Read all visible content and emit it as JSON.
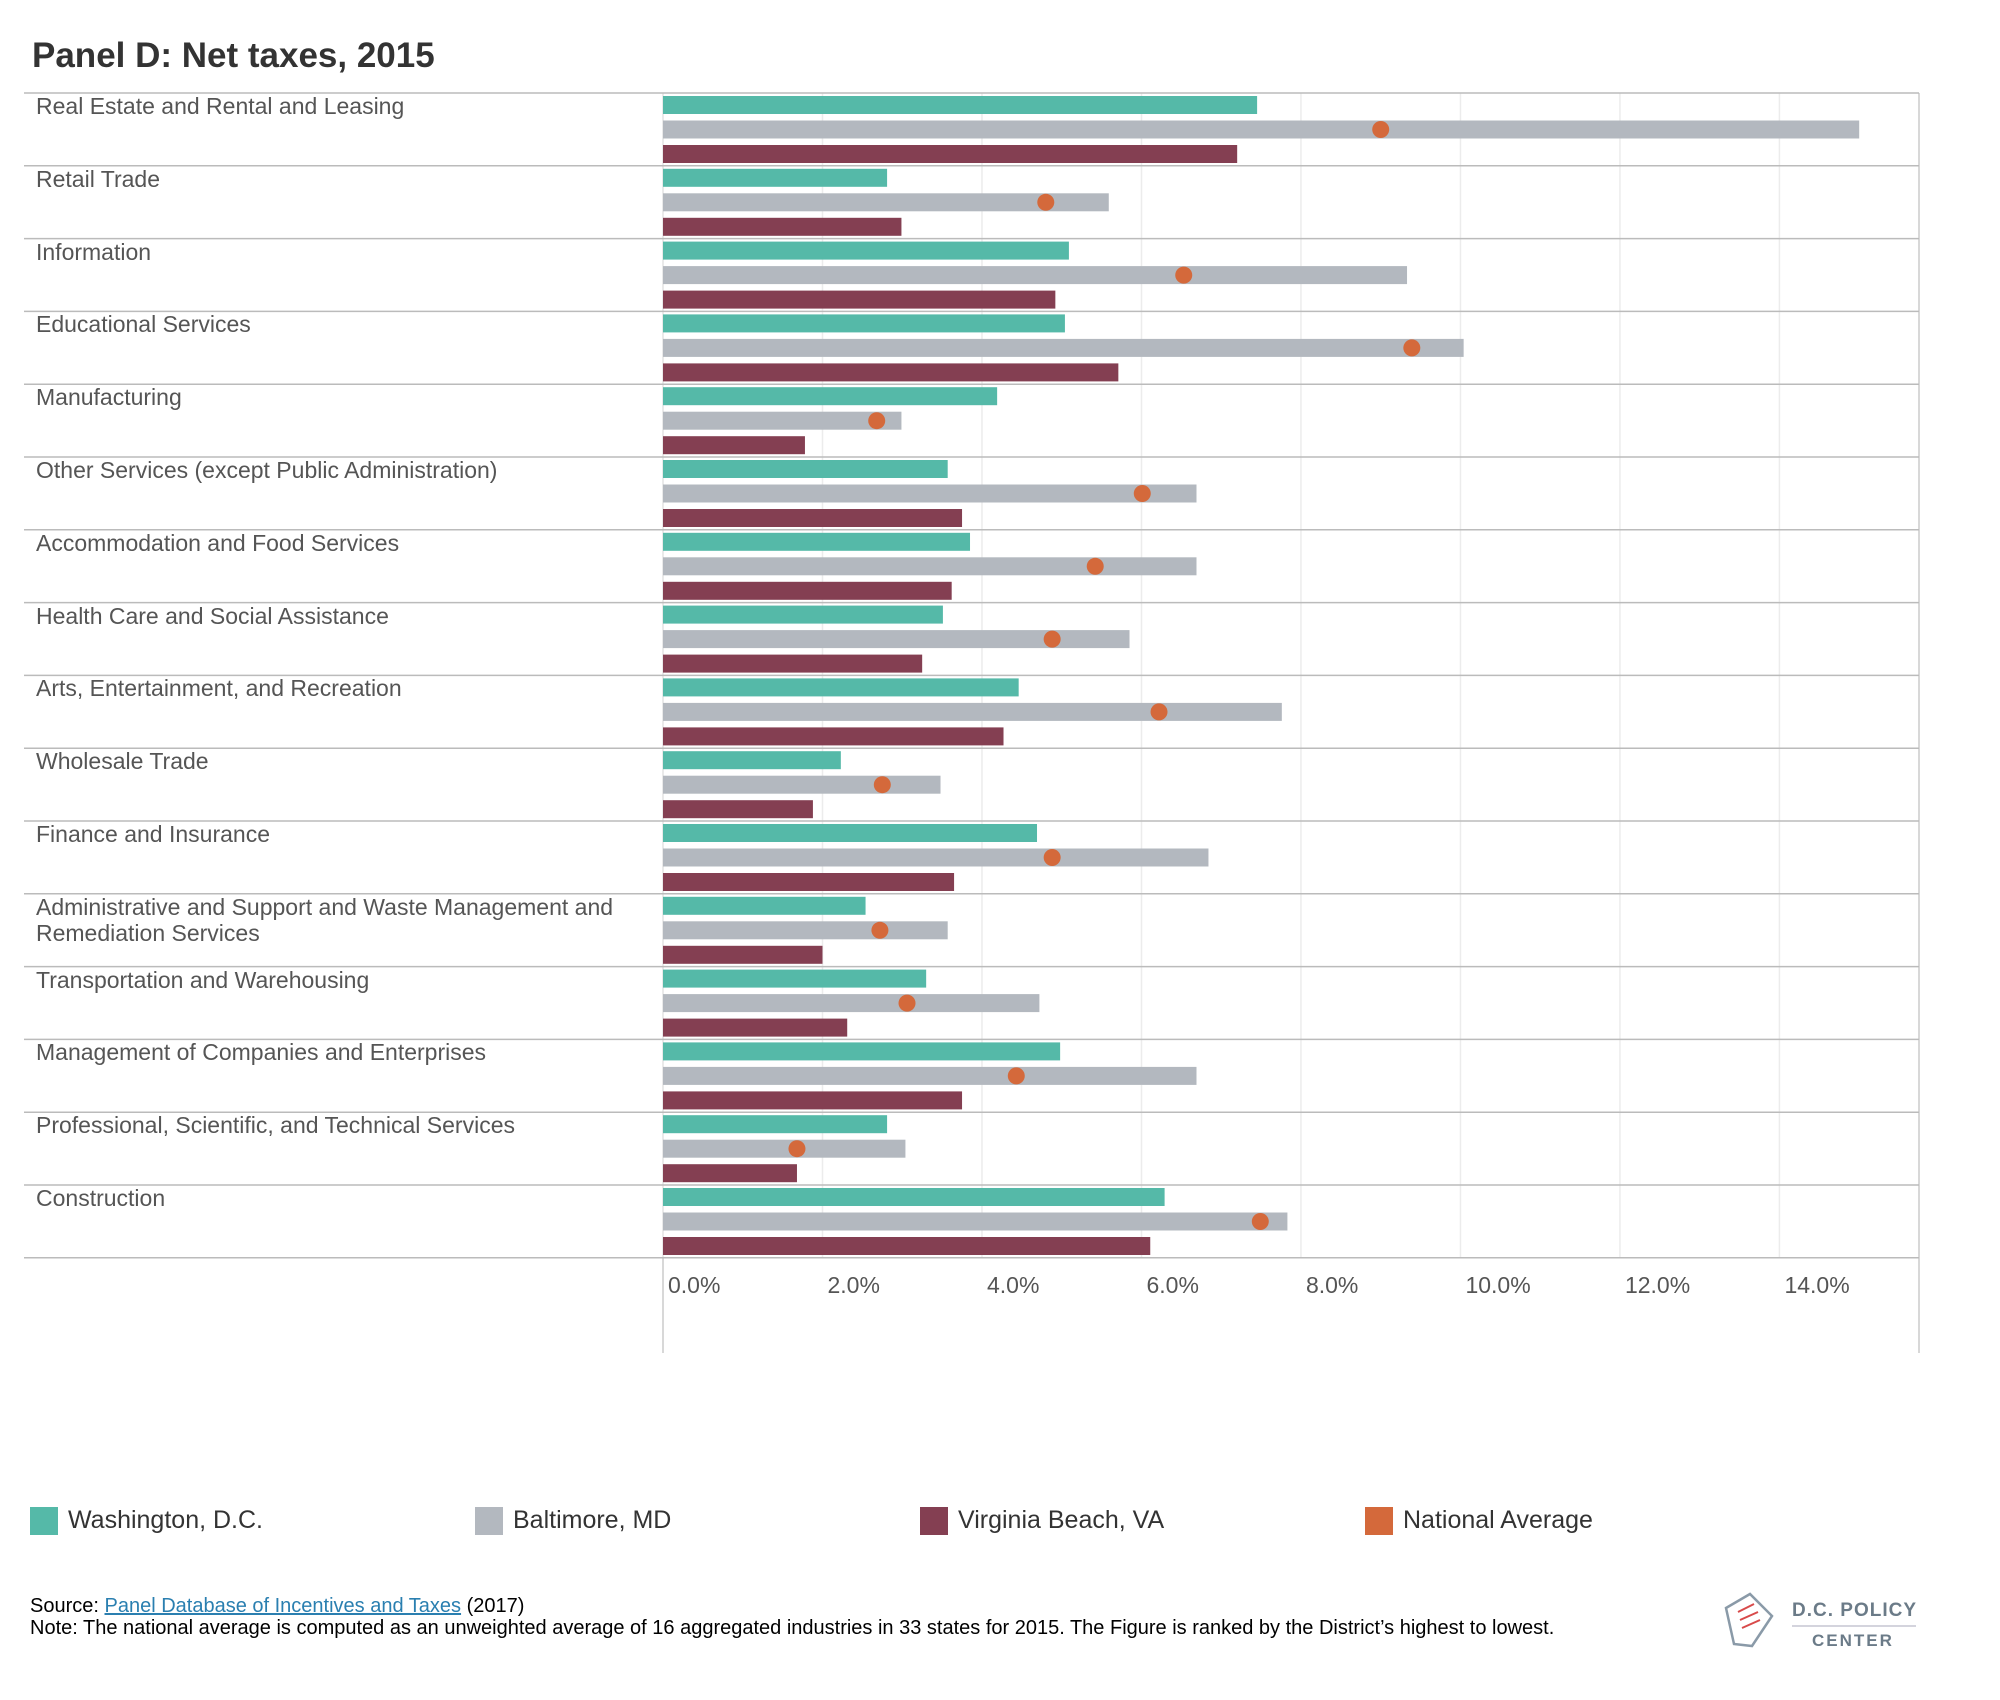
{
  "chart_data": {
    "type": "bar",
    "orientation": "horizontal",
    "title": "Panel D: Net taxes, 2015",
    "categories": [
      "Real Estate and Rental and Leasing",
      "Retail Trade",
      "Information",
      "Educational Services",
      "Manufacturing",
      "Other Services (except Public Administration)",
      "Accommodation and Food Services",
      "Health Care and Social Assistance",
      "Arts, Entertainment, and Recreation",
      "Wholesale Trade",
      "Finance and Insurance",
      "Administrative and Support and Waste Management and Remediation Services",
      "Transportation and Warehousing",
      "Management of Companies and Enterprises",
      "Professional, Scientific, and Technical Services",
      "Construction"
    ],
    "series": [
      {
        "name": "Washington, D.C.",
        "color": "#55b9a8",
        "values": [
          7.45,
          2.81,
          5.09,
          5.04,
          4.19,
          3.57,
          3.85,
          3.51,
          4.46,
          2.23,
          4.69,
          2.54,
          3.3,
          4.98,
          2.81,
          6.29
        ]
      },
      {
        "name": "Baltimore, MD",
        "color": "#b3b8bf",
        "values": [
          15.0,
          5.59,
          9.33,
          10.04,
          2.99,
          6.69,
          6.69,
          5.85,
          7.76,
          3.48,
          6.84,
          3.57,
          4.72,
          6.69,
          3.04,
          7.83
        ]
      },
      {
        "name": "Virginia Beach, VA",
        "color": "#843f52",
        "values": [
          7.2,
          2.99,
          4.92,
          5.71,
          1.78,
          3.75,
          3.62,
          3.25,
          4.27,
          1.88,
          3.65,
          2.0,
          2.31,
          3.75,
          1.68,
          6.11
        ]
      }
    ],
    "markers": {
      "name": "National Average",
      "color": "#d4693b",
      "values": [
        9.0,
        4.8,
        6.53,
        9.39,
        2.68,
        6.01,
        5.42,
        4.88,
        6.22,
        2.75,
        4.88,
        2.72,
        3.06,
        4.43,
        1.68,
        7.49
      ]
    },
    "xlim": [
      0,
      15.75
    ],
    "xticks": [
      {
        "value": 0,
        "label": "0.0%"
      },
      {
        "value": 2,
        "label": "2.0%"
      },
      {
        "value": 4,
        "label": "4.0%"
      },
      {
        "value": 6,
        "label": "6.0%"
      },
      {
        "value": 8,
        "label": "8.0%"
      },
      {
        "value": 10,
        "label": "10.0%"
      },
      {
        "value": 12,
        "label": "12.0%"
      },
      {
        "value": 14,
        "label": "14.0%"
      }
    ],
    "grid": true,
    "source": {
      "prefix": "Source:",
      "link": "Panel Database of Incentives and Taxes",
      "suffix": "(2017)"
    },
    "note": "Note: The national average is computed as an unweighted average of 16 aggregated industries in 33 states for 2015. The Figure is ranked by the District’s highest to lowest.",
    "logo": {
      "line1": "D.C. POLICY",
      "line2": "CENTER"
    }
  }
}
